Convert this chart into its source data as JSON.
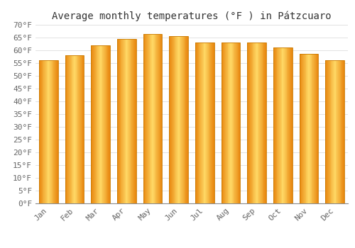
{
  "title": "Average monthly temperatures (°F ) in Pátzcuaro",
  "months": [
    "Jan",
    "Feb",
    "Mar",
    "Apr",
    "May",
    "Jun",
    "Jul",
    "Aug",
    "Sep",
    "Oct",
    "Nov",
    "Dec"
  ],
  "values": [
    56.0,
    58.0,
    62.0,
    64.5,
    66.5,
    65.5,
    63.0,
    63.0,
    63.0,
    61.0,
    58.5,
    56.0
  ],
  "bar_color_center": "#FFD966",
  "bar_color_edge": "#E8860A",
  "ylim": [
    0,
    70
  ],
  "ytick_step": 5,
  "background_color": "#ffffff",
  "plot_bg_color": "#ffffff",
  "grid_color": "#dddddd",
  "title_fontsize": 10,
  "tick_fontsize": 8,
  "bar_width": 0.72
}
